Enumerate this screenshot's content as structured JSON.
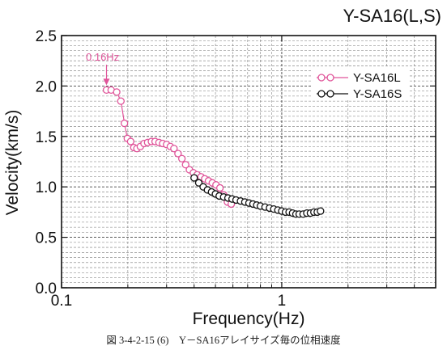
{
  "chart_data": {
    "type": "scatter",
    "title": "Y-SA16(L,S)",
    "xlabel": "Frequency(Hz)",
    "ylabel": "Velocity(km/s)",
    "xscale": "log",
    "xlim": [
      0.1,
      5
    ],
    "ylim": [
      0.0,
      2.5
    ],
    "x_ticks": [
      0.1,
      1
    ],
    "x_tick_labels": [
      "0.1",
      "1"
    ],
    "y_ticks": [
      0.0,
      0.5,
      1.0,
      1.5,
      2.0,
      2.5
    ],
    "y_tick_labels": [
      "0.0",
      "0.5",
      "1.0",
      "1.5",
      "2.0",
      "2.5"
    ],
    "grid": true,
    "legend_position": "top-right",
    "annotation": {
      "text": "0.16Hz",
      "x": 0.16,
      "y": 1.96,
      "color": "#e0559a"
    },
    "series": [
      {
        "name": "Y-SA16L",
        "color": "#e0559a",
        "marker": "open-circle",
        "line": true,
        "x": [
          0.16,
          0.168,
          0.178,
          0.186,
          0.193,
          0.199,
          0.206,
          0.213,
          0.22,
          0.228,
          0.237,
          0.246,
          0.256,
          0.266,
          0.277,
          0.288,
          0.3,
          0.312,
          0.324,
          0.338,
          0.352,
          0.366,
          0.381,
          0.397,
          0.413,
          0.43,
          0.447,
          0.465,
          0.484,
          0.503,
          0.524,
          0.545,
          0.567,
          0.59
        ],
        "y": [
          1.96,
          1.96,
          1.94,
          1.85,
          1.63,
          1.48,
          1.45,
          1.39,
          1.38,
          1.4,
          1.43,
          1.44,
          1.45,
          1.45,
          1.44,
          1.43,
          1.42,
          1.4,
          1.38,
          1.33,
          1.28,
          1.22,
          1.17,
          1.14,
          1.12,
          1.1,
          1.08,
          1.06,
          1.04,
          1.02,
          0.99,
          0.92,
          0.85,
          0.83
        ]
      },
      {
        "name": "Y-SA16S",
        "color": "#111111",
        "marker": "open-circle",
        "line": true,
        "x": [
          0.4,
          0.42,
          0.44,
          0.46,
          0.48,
          0.5,
          0.52,
          0.545,
          0.57,
          0.595,
          0.62,
          0.65,
          0.68,
          0.71,
          0.74,
          0.77,
          0.8,
          0.84,
          0.88,
          0.92,
          0.96,
          1.0,
          1.04,
          1.08,
          1.12,
          1.16,
          1.2,
          1.25,
          1.3,
          1.35,
          1.4,
          1.45,
          1.5
        ],
        "y": [
          1.09,
          1.04,
          1.0,
          0.97,
          0.95,
          0.93,
          0.91,
          0.9,
          0.89,
          0.88,
          0.87,
          0.86,
          0.85,
          0.84,
          0.83,
          0.82,
          0.81,
          0.8,
          0.79,
          0.78,
          0.77,
          0.76,
          0.75,
          0.75,
          0.74,
          0.73,
          0.73,
          0.73,
          0.74,
          0.74,
          0.75,
          0.75,
          0.76
        ]
      }
    ]
  },
  "caption": "図 3-4-2-15 (6)　Y－SA16アレイサイズ毎の位相速度"
}
